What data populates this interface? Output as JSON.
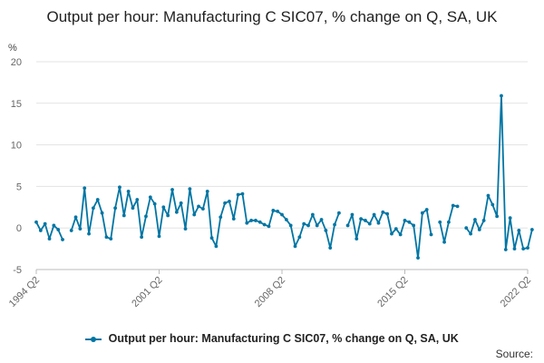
{
  "chart_data": {
    "type": "line",
    "title": "Output per hour: Manufacturing C SIC07, % change on Q, SA, UK",
    "ylabel": "%",
    "ylim": [
      -5,
      20
    ],
    "yticks": [
      -5,
      0,
      5,
      10,
      15,
      20
    ],
    "xticks": [
      "1994 Q2",
      "2001 Q2",
      "2008 Q2",
      "2015 Q2",
      "2022 Q2"
    ],
    "grid": true,
    "legend_position": "bottom",
    "source_label": "Source:",
    "series": [
      {
        "name": "Output per hour: Manufacturing C SIC07, % change on Q, SA, UK",
        "color": "#0075a3",
        "values": [
          {
            "x": "1994 Q2",
            "y": 0.7
          },
          {
            "x": "1994 Q3",
            "y": -0.3
          },
          {
            "x": "1994 Q4",
            "y": 0.5
          },
          {
            "x": "1995 Q1",
            "y": -1.3
          },
          {
            "x": "1995 Q2",
            "y": 0.3
          },
          {
            "x": "1995 Q3",
            "y": -0.2
          },
          {
            "x": "1995 Q4",
            "y": -1.4
          },
          {
            "x": "1996 Q1",
            "y": null
          },
          {
            "x": "1996 Q2",
            "y": -0.3
          },
          {
            "x": "1996 Q3",
            "y": 1.3
          },
          {
            "x": "1996 Q4",
            "y": -0.1
          },
          {
            "x": "1997 Q1",
            "y": 4.8
          },
          {
            "x": "1997 Q2",
            "y": -0.7
          },
          {
            "x": "1997 Q3",
            "y": 2.4
          },
          {
            "x": "1997 Q4",
            "y": 3.4
          },
          {
            "x": "1998 Q1",
            "y": 1.8
          },
          {
            "x": "1998 Q2",
            "y": -1.1
          },
          {
            "x": "1998 Q3",
            "y": -1.3
          },
          {
            "x": "1998 Q4",
            "y": 2.4
          },
          {
            "x": "1999 Q1",
            "y": 4.9
          },
          {
            "x": "1999 Q2",
            "y": 1.5
          },
          {
            "x": "1999 Q3",
            "y": 4.4
          },
          {
            "x": "1999 Q4",
            "y": 2.4
          },
          {
            "x": "2000 Q1",
            "y": 3.4
          },
          {
            "x": "2000 Q2",
            "y": -1.1
          },
          {
            "x": "2000 Q3",
            "y": 1.4
          },
          {
            "x": "2000 Q4",
            "y": 3.7
          },
          {
            "x": "2001 Q1",
            "y": 2.9
          },
          {
            "x": "2001 Q2",
            "y": -1.0
          },
          {
            "x": "2001 Q3",
            "y": 2.5
          },
          {
            "x": "2001 Q4",
            "y": 1.5
          },
          {
            "x": "2002 Q1",
            "y": 4.6
          },
          {
            "x": "2002 Q2",
            "y": 1.9
          },
          {
            "x": "2002 Q3",
            "y": 3.0
          },
          {
            "x": "2002 Q4",
            "y": -0.1
          },
          {
            "x": "2003 Q1",
            "y": 4.7
          },
          {
            "x": "2003 Q2",
            "y": 1.6
          },
          {
            "x": "2003 Q3",
            "y": 2.6
          },
          {
            "x": "2003 Q4",
            "y": 2.3
          },
          {
            "x": "2004 Q1",
            "y": 4.4
          },
          {
            "x": "2004 Q2",
            "y": -1.2
          },
          {
            "x": "2004 Q3",
            "y": -2.2
          },
          {
            "x": "2004 Q4",
            "y": 1.3
          },
          {
            "x": "2005 Q1",
            "y": 3.0
          },
          {
            "x": "2005 Q2",
            "y": 3.2
          },
          {
            "x": "2005 Q3",
            "y": 1.1
          },
          {
            "x": "2005 Q4",
            "y": 4.0
          },
          {
            "x": "2006 Q1",
            "y": 4.1
          },
          {
            "x": "2006 Q2",
            "y": 0.6
          },
          {
            "x": "2006 Q3",
            "y": 0.9
          },
          {
            "x": "2006 Q4",
            "y": 0.9
          },
          {
            "x": "2007 Q1",
            "y": 0.7
          },
          {
            "x": "2007 Q2",
            "y": 0.4
          },
          {
            "x": "2007 Q3",
            "y": 0.2
          },
          {
            "x": "2007 Q4",
            "y": 2.1
          },
          {
            "x": "2008 Q1",
            "y": 2.0
          },
          {
            "x": "2008 Q2",
            "y": 1.6
          },
          {
            "x": "2008 Q3",
            "y": 1.0
          },
          {
            "x": "2008 Q4",
            "y": 0.3
          },
          {
            "x": "2009 Q1",
            "y": -2.2
          },
          {
            "x": "2009 Q2",
            "y": -1.1
          },
          {
            "x": "2009 Q3",
            "y": 0.5
          },
          {
            "x": "2009 Q4",
            "y": 0.3
          },
          {
            "x": "2010 Q1",
            "y": 1.6
          },
          {
            "x": "2010 Q2",
            "y": 0.3
          },
          {
            "x": "2010 Q3",
            "y": 1.0
          },
          {
            "x": "2010 Q4",
            "y": -0.3
          },
          {
            "x": "2011 Q1",
            "y": -2.4
          },
          {
            "x": "2011 Q2",
            "y": 0.4
          },
          {
            "x": "2011 Q3",
            "y": 1.8
          },
          {
            "x": "2011 Q4",
            "y": null
          },
          {
            "x": "2012 Q1",
            "y": 0.3
          },
          {
            "x": "2012 Q2",
            "y": 1.6
          },
          {
            "x": "2012 Q3",
            "y": -1.3
          },
          {
            "x": "2012 Q4",
            "y": 1.1
          },
          {
            "x": "2013 Q1",
            "y": 0.9
          },
          {
            "x": "2013 Q2",
            "y": 0.5
          },
          {
            "x": "2013 Q3",
            "y": 1.6
          },
          {
            "x": "2013 Q4",
            "y": 0.6
          },
          {
            "x": "2014 Q1",
            "y": 1.9
          },
          {
            "x": "2014 Q2",
            "y": 1.7
          },
          {
            "x": "2014 Q3",
            "y": -0.7
          },
          {
            "x": "2014 Q4",
            "y": -0.1
          },
          {
            "x": "2015 Q1",
            "y": -0.8
          },
          {
            "x": "2015 Q2",
            "y": 0.9
          },
          {
            "x": "2015 Q3",
            "y": 0.7
          },
          {
            "x": "2015 Q4",
            "y": 0.3
          },
          {
            "x": "2016 Q1",
            "y": -3.6
          },
          {
            "x": "2016 Q2",
            "y": 1.8
          },
          {
            "x": "2016 Q3",
            "y": 2.2
          },
          {
            "x": "2016 Q4",
            "y": -0.8
          },
          {
            "x": "2017 Q1",
            "y": null
          },
          {
            "x": "2017 Q2",
            "y": 0.7
          },
          {
            "x": "2017 Q3",
            "y": -1.7
          },
          {
            "x": "2017 Q4",
            "y": 0.7
          },
          {
            "x": "2018 Q1",
            "y": 2.7
          },
          {
            "x": "2018 Q2",
            "y": 2.6
          },
          {
            "x": "2018 Q3",
            "y": null
          },
          {
            "x": "2018 Q4",
            "y": 0.0
          },
          {
            "x": "2019 Q1",
            "y": -0.7
          },
          {
            "x": "2019 Q2",
            "y": 1.0
          },
          {
            "x": "2019 Q3",
            "y": -0.2
          },
          {
            "x": "2019 Q4",
            "y": 0.9
          },
          {
            "x": "2020 Q1",
            "y": 3.9
          },
          {
            "x": "2020 Q2",
            "y": 2.8
          },
          {
            "x": "2020 Q3",
            "y": 1.4
          },
          {
            "x": "2020 Q4",
            "y": 15.9
          },
          {
            "x": "2021 Q1",
            "y": -2.6
          },
          {
            "x": "2021 Q2",
            "y": 1.2
          },
          {
            "x": "2021 Q3",
            "y": -2.5
          },
          {
            "x": "2021 Q4",
            "y": -0.3
          },
          {
            "x": "2022 Q1",
            "y": -2.5
          },
          {
            "x": "2022 Q2",
            "y": -2.4
          },
          {
            "x": "2022 Q3",
            "y": -0.2
          }
        ]
      }
    ]
  }
}
